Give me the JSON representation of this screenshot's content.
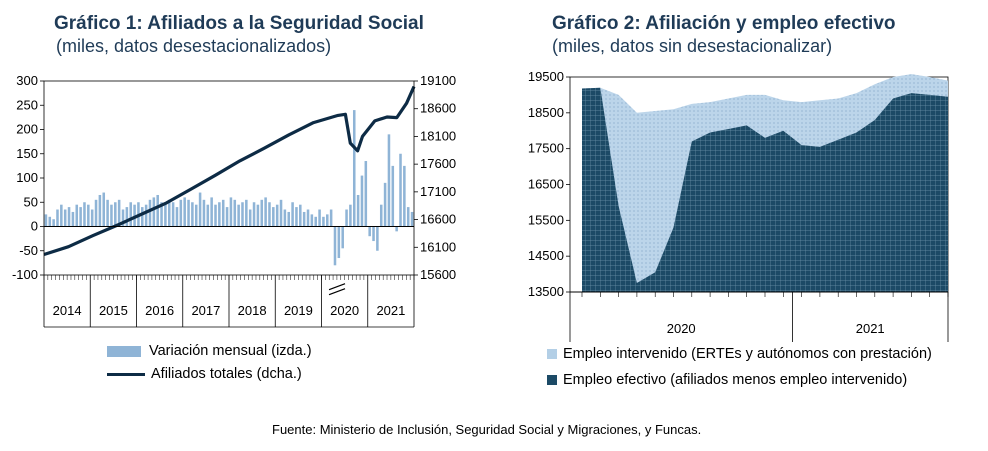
{
  "chart1": {
    "title": "Gráfico 1: Afiliados a la Seguridad Social",
    "subtitle": "(miles, datos desestacionalizados)",
    "left_ticks": [
      "300",
      "250",
      "200",
      "150",
      "100",
      "50",
      "0",
      "-50",
      "-100"
    ],
    "right_ticks": [
      "19100",
      "18600",
      "18100",
      "17600",
      "17100",
      "16600",
      "16100",
      "15600"
    ],
    "year_labels": [
      "2014",
      "2015",
      "2016",
      "2017",
      "2018",
      "2019",
      "2020",
      "2021"
    ],
    "legend": {
      "bars": "Variación mensual (izda.)",
      "line": "Afiliados totales (dcha.)"
    }
  },
  "chart2": {
    "title": "Gráfico 2: Afiliación y empleo efectivo",
    "subtitle": "(miles, datos sin desestacionalizar)",
    "y_ticks": [
      "19500",
      "18500",
      "17500",
      "16500",
      "15500",
      "14500",
      "13500"
    ],
    "year_labels": [
      "2020",
      "2021"
    ],
    "legend": {
      "light": "Empleo intervenido (ERTEs y autónomos con prestación)",
      "dark": "Empleo efectivo (afiliados menos empleo intervenido)"
    }
  },
  "source": "Fuente: Ministerio de Inclusión, Seguridad Social y Migraciones, y Funcas.",
  "chart_data": [
    {
      "type": "bar",
      "title": "Gráfico 1: Afiliados a la Seguridad Social",
      "subtitle": "(miles, datos desestacionalizados)",
      "x_range": [
        "2014-01",
        "2021-06"
      ],
      "ylim_left": [
        -100,
        300
      ],
      "ylim_right": [
        15600,
        19100
      ],
      "series": [
        {
          "name": "Variación mensual (izda.)",
          "axis": "left",
          "type": "bar",
          "values": [
            25,
            20,
            15,
            35,
            45,
            35,
            40,
            30,
            45,
            40,
            50,
            45,
            35,
            55,
            65,
            70,
            55,
            45,
            50,
            55,
            35,
            40,
            50,
            45,
            50,
            40,
            45,
            55,
            60,
            65,
            50,
            45,
            55,
            50,
            40,
            55,
            60,
            55,
            50,
            45,
            70,
            55,
            45,
            60,
            45,
            50,
            55,
            40,
            60,
            55,
            45,
            50,
            55,
            35,
            50,
            45,
            55,
            60,
            50,
            40,
            45,
            55,
            35,
            30,
            50,
            40,
            45,
            30,
            35,
            25,
            20,
            35,
            20,
            25,
            35,
            -80,
            -65,
            -45,
            35,
            45,
            240,
            65,
            105,
            135,
            -20,
            -30,
            -50,
            45,
            90,
            190,
            125,
            -10,
            150,
            125,
            40,
            30
          ],
          "values_note": "monthly series Jan-2014 to ~Jun-2021"
        },
        {
          "name": "Afiliados totales (dcha.)",
          "axis": "right",
          "type": "line",
          "points": [
            [
              2014.0,
              15970
            ],
            [
              2014.5,
              16110
            ],
            [
              2015.0,
              16310
            ],
            [
              2015.5,
              16500
            ],
            [
              2016.0,
              16700
            ],
            [
              2016.5,
              16900
            ],
            [
              2017.0,
              17150
            ],
            [
              2017.5,
              17400
            ],
            [
              2018.0,
              17660
            ],
            [
              2018.5,
              17890
            ],
            [
              2019.0,
              18130
            ],
            [
              2019.5,
              18350
            ],
            [
              2020.0,
              18480
            ],
            [
              2020.15,
              18500
            ],
            [
              2020.25,
              17980
            ],
            [
              2020.4,
              17840
            ],
            [
              2020.5,
              18100
            ],
            [
              2020.75,
              18380
            ],
            [
              2021.0,
              18450
            ],
            [
              2021.2,
              18440
            ],
            [
              2021.4,
              18700
            ],
            [
              2021.55,
              19000
            ]
          ]
        }
      ]
    },
    {
      "type": "area",
      "title": "Gráfico 2: Afiliación y empleo efectivo",
      "subtitle": "(miles, datos sin desestacionalizar)",
      "x": [
        "2020-01",
        "2020-02",
        "2020-03",
        "2020-04",
        "2020-05",
        "2020-06",
        "2020-07",
        "2020-08",
        "2020-09",
        "2020-10",
        "2020-11",
        "2020-12",
        "2021-01",
        "2021-02",
        "2021-03",
        "2021-04",
        "2021-05",
        "2021-06",
        "2021-07",
        "2021-08",
        "2021-09"
      ],
      "ylim": [
        13500,
        19500
      ],
      "series": [
        {
          "name": "Empleo efectivo (afiliados menos empleo intervenido)",
          "values": [
            19180,
            19200,
            15900,
            13750,
            14050,
            15300,
            17700,
            17950,
            18050,
            18150,
            17800,
            18000,
            17600,
            17550,
            17750,
            17950,
            18300,
            18900,
            19050,
            19000,
            18950
          ]
        },
        {
          "name": "Empleo intervenido (ERTEs y autónomos con prestación)",
          "values_total": [
            19180,
            19200,
            19000,
            18500,
            18550,
            18600,
            18750,
            18800,
            18900,
            19000,
            19000,
            18850,
            18800,
            18850,
            18900,
            19050,
            19300,
            19500,
            19580,
            19500,
            19400
          ]
        }
      ]
    }
  ]
}
